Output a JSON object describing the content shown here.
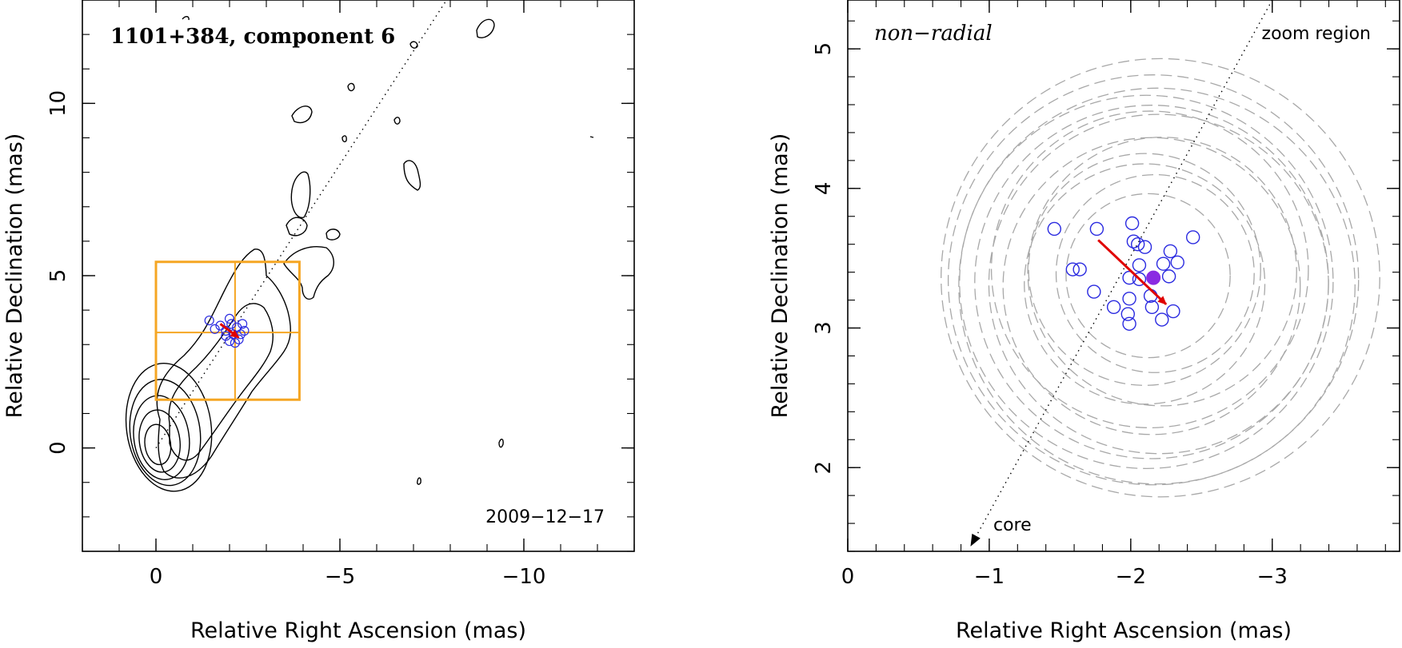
{
  "chart_data": [
    {
      "type": "scatter",
      "title": "1101+384, component 6",
      "date": "2009−12−17",
      "xlabel": "Relative Right Ascension (mas)",
      "ylabel": "Relative Declination (mas)",
      "xlim": [
        2.0,
        -13.0
      ],
      "ylim": [
        -3.0,
        13.0
      ],
      "xticks": [
        {
          "v": 0,
          "label": "0"
        },
        {
          "v": -5,
          "label": "−5"
        },
        {
          "v": -10,
          "label": "−10"
        }
      ],
      "yticks": [
        {
          "v": 0,
          "label": "0"
        },
        {
          "v": 5,
          "label": "5"
        },
        {
          "v": 10,
          "label": "10"
        }
      ],
      "jet_axis": [
        [
          0,
          0
        ],
        [
          -7.9,
          13.0
        ]
      ],
      "zoom_box": {
        "x": [
          0.0,
          -3.9
        ],
        "y": [
          1.4,
          5.4
        ],
        "crosshair": [
          -2.15,
          3.35
        ]
      },
      "core_contours": [
        {
          "cx": 0.05,
          "cy": 0.1,
          "rx": 0.35,
          "ry": 0.55
        },
        {
          "cx": 0.1,
          "cy": 0.2,
          "rx": 0.55,
          "ry": 0.85
        },
        {
          "cx": 0.15,
          "cy": 0.3,
          "rx": 0.75,
          "ry": 1.15
        },
        {
          "cx": 0.25,
          "cy": 0.45,
          "rx": 0.95,
          "ry": 1.45
        },
        {
          "cx": 0.35,
          "cy": 0.6,
          "rx": 1.15,
          "ry": 1.75
        }
      ],
      "positions": [
        [
          -1.45,
          3.7
        ],
        [
          -1.75,
          3.55
        ],
        [
          -1.9,
          3.4
        ],
        [
          -2.0,
          3.75
        ],
        [
          -2.05,
          3.6
        ],
        [
          -2.2,
          3.5
        ],
        [
          -2.35,
          3.6
        ],
        [
          -2.1,
          3.3
        ],
        [
          -1.9,
          3.25
        ],
        [
          -2.0,
          3.1
        ],
        [
          -2.25,
          3.15
        ],
        [
          -2.4,
          3.4
        ],
        [
          -2.15,
          3.05
        ],
        [
          -2.3,
          3.3
        ],
        [
          -1.6,
          3.45
        ]
      ],
      "mean_position": [
        -2.15,
        3.35
      ],
      "motion_vector": {
        "from": [
          -1.75,
          3.6
        ],
        "to": [
          -2.25,
          3.2
        ]
      }
    },
    {
      "type": "scatter",
      "title": "non−radial",
      "region_label": "zoom region",
      "core_label": "core",
      "xlabel": "Relative Right Ascension (mas)",
      "ylabel": "Relative Declination (mas)",
      "xlim": [
        0.0,
        -3.9
      ],
      "ylim": [
        1.4,
        5.35
      ],
      "xticks": [
        {
          "v": 0,
          "label": "0"
        },
        {
          "v": -1,
          "label": "−1"
        },
        {
          "v": -2,
          "label": "−2"
        },
        {
          "v": -3,
          "label": "−3"
        }
      ],
      "yticks": [
        {
          "v": 2,
          "label": "2"
        },
        {
          "v": 3,
          "label": "3"
        },
        {
          "v": 4,
          "label": "4"
        },
        {
          "v": 5,
          "label": "5"
        }
      ],
      "jet_axis": [
        [
          -0.87,
          1.44
        ],
        [
          -3.0,
          5.35
        ]
      ],
      "positions": [
        [
          -1.46,
          3.71
        ],
        [
          -1.59,
          3.42
        ],
        [
          -1.64,
          3.42
        ],
        [
          -1.76,
          3.71
        ],
        [
          -1.74,
          3.26
        ],
        [
          -1.88,
          3.15
        ],
        [
          -1.98,
          3.1
        ],
        [
          -1.99,
          3.03
        ],
        [
          -1.99,
          3.21
        ],
        [
          -1.99,
          3.36
        ],
        [
          -2.01,
          3.75
        ],
        [
          -2.02,
          3.62
        ],
        [
          -2.05,
          3.6
        ],
        [
          -2.06,
          3.45
        ],
        [
          -2.06,
          3.35
        ],
        [
          -2.1,
          3.58
        ],
        [
          -2.14,
          3.23
        ],
        [
          -2.15,
          3.15
        ],
        [
          -2.22,
          3.06
        ],
        [
          -2.23,
          3.46
        ],
        [
          -2.27,
          3.37
        ],
        [
          -2.28,
          3.55
        ],
        [
          -2.3,
          3.12
        ],
        [
          -2.33,
          3.47
        ],
        [
          -2.44,
          3.65
        ]
      ],
      "uncertainty_radii": [
        0.82,
        1.05,
        1.2,
        1.32,
        1.45,
        1.55,
        0.58,
        0.7,
        0.95,
        1.12,
        1.4,
        0.85,
        1.25
      ],
      "mean_position": [
        -2.16,
        3.36
      ],
      "motion_vector": {
        "from": [
          -1.77,
          3.63
        ],
        "to": [
          -2.25,
          3.17
        ]
      }
    }
  ],
  "colors": {
    "contour": "#000000",
    "positions": "#2a2ae0",
    "mean": "#8a2be2",
    "vector": "#e00000",
    "zoom_box": "#f5a623",
    "uncertainty": "#a8a8a8"
  }
}
